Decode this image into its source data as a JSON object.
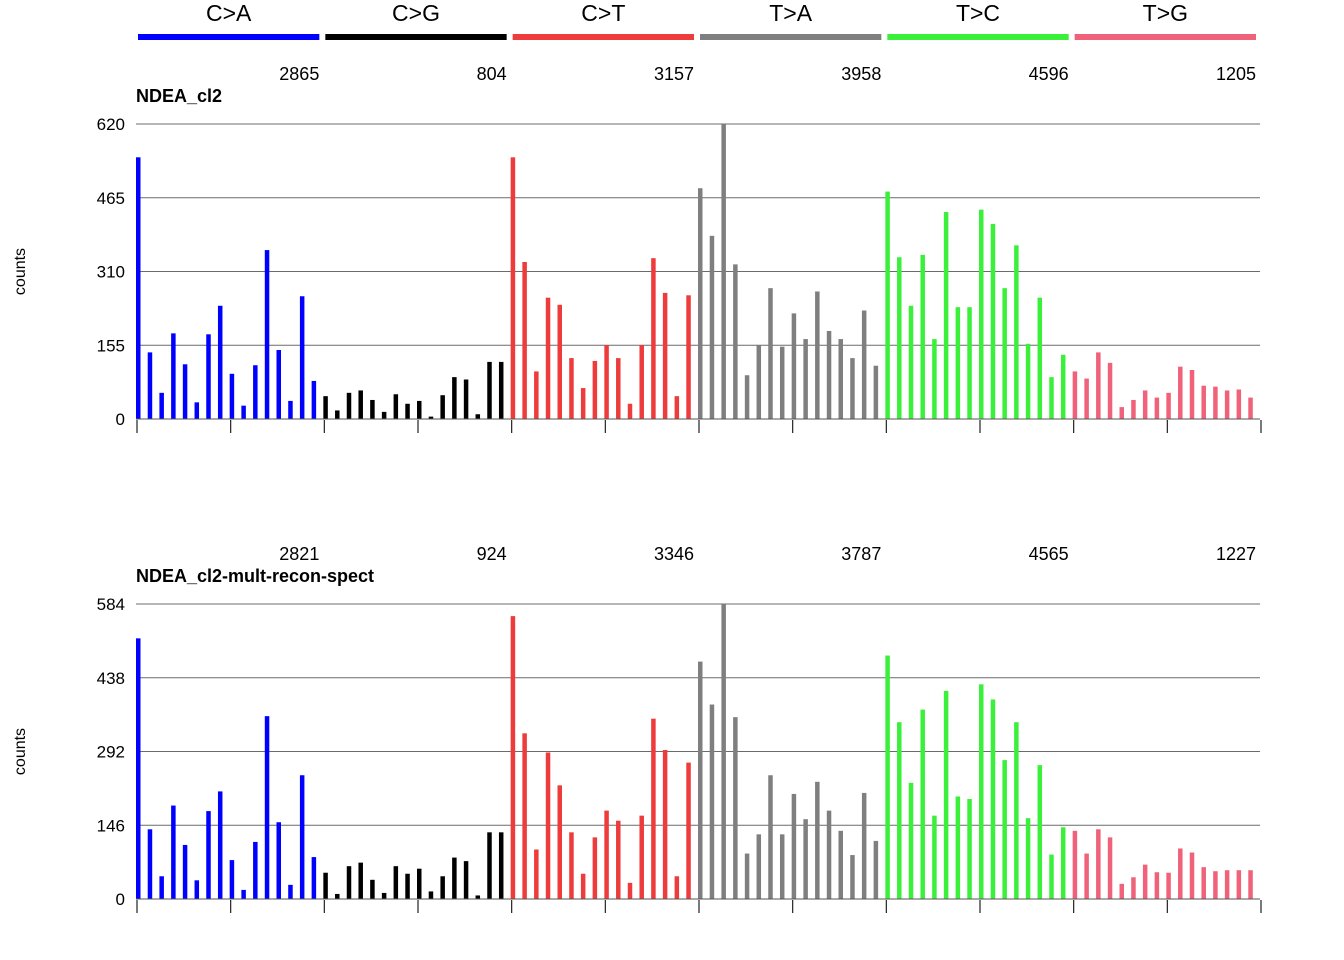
{
  "mutation_classes": [
    {
      "label": "C>A",
      "color": "#0000FF"
    },
    {
      "label": "C>G",
      "color": "#000000"
    },
    {
      "label": "C>T",
      "color": "#EE3B3B"
    },
    {
      "label": "T>A",
      "color": "#7F7F7F"
    },
    {
      "label": "T>C",
      "color": "#3BF03B"
    },
    {
      "label": "T>G",
      "color": "#F0627A"
    }
  ],
  "chart_data": [
    {
      "type": "bar",
      "title": "NDEA_cl2",
      "ylabel": "counts",
      "ylim": [
        0,
        620
      ],
      "yticks": [
        "0",
        "155",
        "310",
        "465",
        "620"
      ],
      "class_totals": [
        "2865",
        "804",
        "3157",
        "3958",
        "4596",
        "1205"
      ],
      "grid": true,
      "values": [
        550,
        140,
        55,
        180,
        115,
        35,
        178,
        238,
        95,
        28,
        113,
        355,
        145,
        38,
        258,
        80,
        48,
        18,
        55,
        60,
        40,
        15,
        52,
        32,
        38,
        5,
        50,
        88,
        83,
        10,
        120,
        120,
        550,
        330,
        100,
        255,
        240,
        128,
        65,
        122,
        155,
        128,
        32,
        155,
        338,
        265,
        48,
        260,
        485,
        385,
        620,
        325,
        92,
        155,
        275,
        152,
        222,
        168,
        268,
        185,
        168,
        128,
        228,
        112,
        478,
        340,
        238,
        345,
        168,
        435,
        235,
        235,
        440,
        410,
        275,
        365,
        158,
        255,
        88,
        135,
        100,
        85,
        140,
        118,
        25,
        40,
        60,
        45,
        55,
        110,
        103,
        70,
        68,
        60,
        62,
        45
      ]
    },
    {
      "type": "bar",
      "title": "NDEA_cl2-mult-recon-spect",
      "ylabel": "counts",
      "ylim": [
        0,
        584
      ],
      "yticks": [
        "0",
        "146",
        "292",
        "438",
        "584"
      ],
      "class_totals": [
        "2821",
        "924",
        "3346",
        "3787",
        "4565",
        "1227"
      ],
      "grid": true,
      "values": [
        516,
        138,
        45,
        185,
        107,
        37,
        174,
        213,
        77,
        18,
        113,
        362,
        152,
        28,
        245,
        83,
        52,
        10,
        65,
        72,
        38,
        12,
        65,
        50,
        60,
        15,
        45,
        82,
        75,
        7,
        132,
        132,
        560,
        328,
        98,
        290,
        225,
        132,
        50,
        122,
        175,
        155,
        32,
        165,
        357,
        295,
        45,
        270,
        470,
        385,
        584,
        360,
        90,
        128,
        245,
        128,
        208,
        158,
        232,
        175,
        135,
        87,
        210,
        115,
        482,
        350,
        230,
        375,
        165,
        412,
        203,
        198,
        425,
        395,
        275,
        350,
        160,
        265,
        88,
        142,
        135,
        90,
        138,
        122,
        30,
        43,
        68,
        53,
        52,
        100,
        92,
        63,
        55,
        57,
        57,
        57
      ]
    }
  ]
}
